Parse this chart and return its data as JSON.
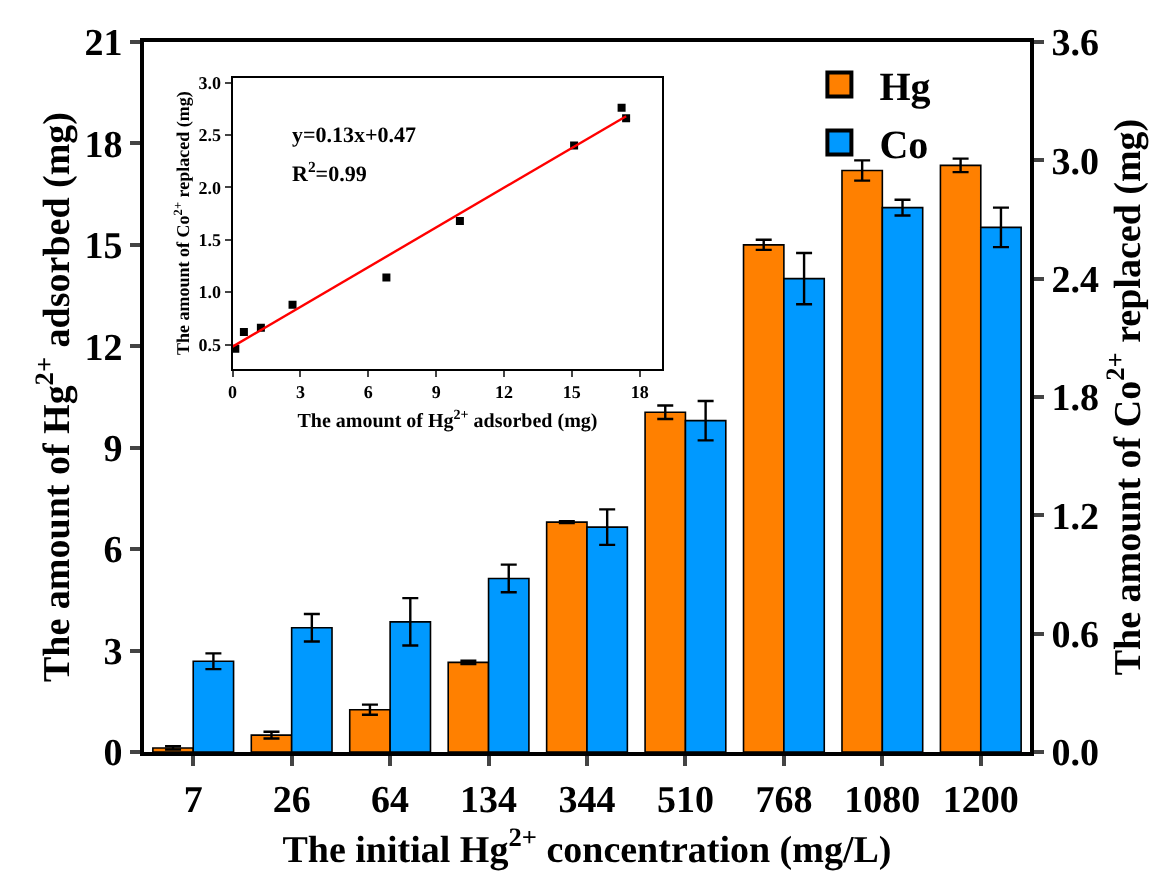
{
  "chart_data": [
    {
      "type": "bar",
      "xlabel": "The initial Hg$^{2+}$ concentration (mg/L)",
      "ylabel": "The amount of Hg$^{2+}$ adsorbed (mg)",
      "y2label": "The amount of Co$^{2+}$ replaced (mg)",
      "categories": [
        "7",
        "26",
        "64",
        "134",
        "344",
        "510",
        "768",
        "1080",
        "1200"
      ],
      "series": [
        {
          "name": "Hg",
          "color": "#ff8000",
          "values": [
            0.12,
            0.5,
            1.25,
            2.65,
            6.8,
            10.05,
            15.0,
            17.2,
            17.35
          ],
          "errors": [
            0.05,
            0.1,
            0.15,
            0.05,
            0.03,
            0.2,
            0.15,
            0.3,
            0.2
          ]
        },
        {
          "name": "Co",
          "color": "#0099ff",
          "axis": "y2",
          "values": [
            0.46,
            0.63,
            0.66,
            0.88,
            1.14,
            1.68,
            2.4,
            2.76,
            2.66
          ],
          "errors": [
            0.04,
            0.07,
            0.12,
            0.07,
            0.09,
            0.1,
            0.13,
            0.04,
            0.1
          ]
        }
      ],
      "ylim": [
        0,
        21
      ],
      "yticks": [
        0,
        3,
        6,
        9,
        12,
        15,
        18,
        21
      ],
      "y2lim": [
        0,
        3.6
      ],
      "y2ticks": [
        {
          "value": 0,
          "label": "0.0"
        },
        0.6,
        1.2,
        1.8,
        2.4,
        {
          "value": 3,
          "label": "3.0"
        },
        3.6
      ],
      "legend": "top right"
    },
    {
      "type": "scatter",
      "xlabel": "The amount of Hg$^{2+}$ adsorbed (mg)",
      "ylabel": "The amount of Co$^{2+}$ replaced (mg)",
      "series": [
        {
          "color": "#000000",
          "marker": "square",
          "x": [
            0.12,
            0.5,
            1.25,
            2.65,
            6.8,
            10.05,
            15.1,
            17.2,
            17.4
          ],
          "values": [
            0.46,
            0.62,
            0.66,
            0.88,
            1.14,
            1.68,
            2.4,
            2.76,
            2.66
          ]
        },
        {
          "type": "line",
          "marker": "none",
          "color": "#ff0000",
          "x": [
            0,
            17.4
          ],
          "values": [
            0.48,
            2.68
          ]
        }
      ],
      "annotations": [
        "y=0.13x+0.47",
        "R$^{2}$=0.99"
      ],
      "xlim": [
        0,
        19
      ],
      "xticks": [
        0,
        3,
        6,
        9,
        12,
        15,
        18
      ],
      "ylim": [
        0.27,
        3.05
      ],
      "yticks": [
        0.5,
        {
          "value": 1,
          "label": "1.0"
        },
        1.5,
        {
          "value": 2,
          "label": "2.0"
        },
        2.5,
        {
          "value": 3,
          "label": "3.0"
        }
      ]
    }
  ]
}
